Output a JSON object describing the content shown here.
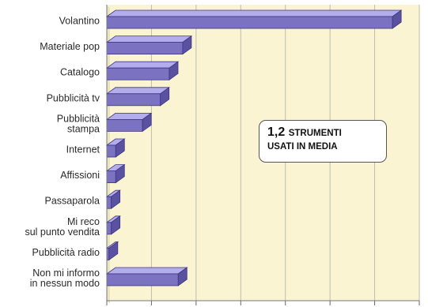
{
  "chart_data": {
    "type": "bar",
    "orientation": "horizontal",
    "categories": [
      [
        "Volantino"
      ],
      [
        "Materiale pop"
      ],
      [
        "Catalogo"
      ],
      [
        "Pubblicità tv"
      ],
      [
        "Pubblicità",
        "stampa"
      ],
      [
        "Internet"
      ],
      [
        "Affissioni"
      ],
      [
        "Passaparola"
      ],
      [
        "Mi reco",
        "sul punto vendita"
      ],
      [
        "Pubblicità radio"
      ],
      [
        "Non mi informo",
        "in nessun modo"
      ]
    ],
    "values": [
      64,
      17,
      14,
      12,
      8,
      2,
      2,
      1,
      1,
      0.5,
      16
    ],
    "xlim": [
      0,
      70
    ],
    "grid": true,
    "colors": {
      "bar_face": "#7b73c2",
      "bar_top": "#b3adeb",
      "bar_side": "#5a52a0",
      "plot_bg": "#faf4d2",
      "grid": "#bdbdb2"
    }
  },
  "callout": {
    "value": "1,2",
    "text_line1": "STRUMENTI",
    "text_line2": "USATI IN MEDIA"
  }
}
